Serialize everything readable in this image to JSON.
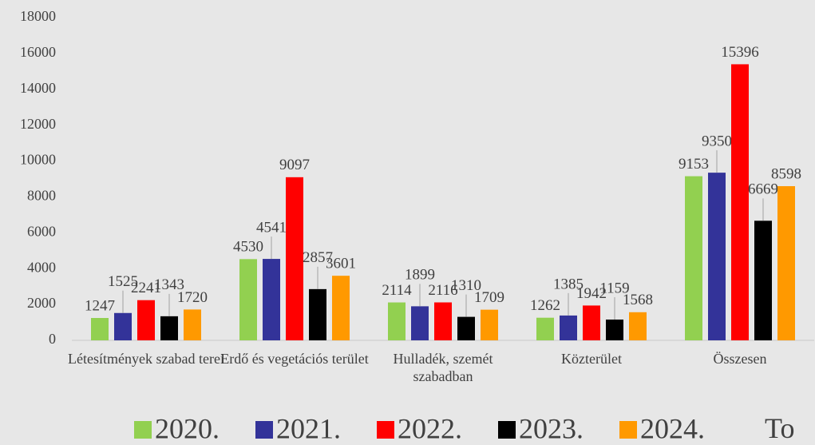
{
  "chart_data": {
    "type": "bar",
    "categories": [
      "Létesítmények szabad terei",
      "Erdő és vegetációs terület",
      "Hulladék, szemét szabadban",
      "Közterület",
      "Összesen"
    ],
    "series": [
      {
        "name": "2020.",
        "color": "#92d050",
        "values": [
          1247,
          4530,
          2114,
          1262,
          9153
        ]
      },
      {
        "name": "2021.",
        "color": "#333399",
        "values": [
          1525,
          4541,
          1899,
          1385,
          9350
        ]
      },
      {
        "name": "2022.",
        "color": "#ff0000",
        "values": [
          2241,
          9097,
          2116,
          1942,
          15396
        ]
      },
      {
        "name": "2023.",
        "color": "#000000",
        "values": [
          1343,
          2857,
          1310,
          1159,
          6669
        ]
      },
      {
        "name": "2024.",
        "color": "#ff9900",
        "values": [
          1720,
          3601,
          1709,
          1568,
          8598
        ]
      }
    ],
    "ylim": [
      0,
      18000
    ],
    "yticks": [
      0,
      2000,
      4000,
      6000,
      8000,
      10000,
      12000,
      14000,
      16000,
      18000
    ],
    "grid": false,
    "legend": "bottom",
    "footer_fragment": "To"
  }
}
